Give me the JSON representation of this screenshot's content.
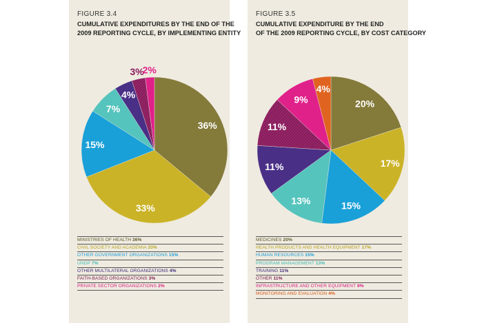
{
  "chart_data": [
    {
      "type": "pie",
      "figure_label": "FIGURE 3.4",
      "title_lines": [
        "CUMULATIVE EXPENDITURES BY THE END OF THE",
        "2009 REPORTING CYCLE, BY IMPLEMENTING ENTITY"
      ],
      "slices": [
        {
          "name": "MINISTRIES OF HEALTH",
          "value": 36,
          "label": "36%",
          "color": "#847a3a",
          "label_color": "#ffffff"
        },
        {
          "name": "CIVIL SOCIETY AND ACADEMIA",
          "value": 33,
          "label": "33%",
          "color": "#cbb327",
          "label_color": "#ffffff"
        },
        {
          "name": "OTHER GOVERNMENT ORGANIZATIONS",
          "value": 15,
          "label": "15%",
          "color": "#1aa0d8",
          "label_color": "#ffffff"
        },
        {
          "name": "UNDP",
          "value": 7,
          "label": "7%",
          "color": "#55c4bd",
          "label_color": "#ffffff"
        },
        {
          "name": "OTHER MULTILATERAL ORGANIZATIONS",
          "value": 4,
          "label": "4%",
          "color": "#4a2f87",
          "label_color": "#ffffff"
        },
        {
          "name": "FAITH-BASED ORGANIZATIONS",
          "value": 3,
          "label": "3%",
          "color": "#8a1a5c",
          "label_color": "#8a1a5c"
        },
        {
          "name": "PRIVATE SECTOR ORGANIZATIONS",
          "value": 2,
          "label": "2%",
          "color": "#e0218a",
          "label_color": "#e0218a"
        }
      ],
      "legend": [
        {
          "name": "MINISTRIES OF HEALTH",
          "pct": "36%",
          "color": "#5f5a2c"
        },
        {
          "name": "CIVIL SOCIETY AND ACADEMIA",
          "pct": "33%",
          "color": "#b8a21f"
        },
        {
          "name": "OTHER GOVERNMENT ORGANIZATIONS",
          "pct": "15%",
          "color": "#1a9ad4"
        },
        {
          "name": "UNDP",
          "pct": "7%",
          "color": "#3fb8b0"
        },
        {
          "name": "OTHER MULTILATERAL ORGANIZATIONS",
          "pct": "4%",
          "color": "#3e2a7a"
        },
        {
          "name": "FAITH-BASED ORGANIZATIONS",
          "pct": "3%",
          "color": "#7a1850"
        },
        {
          "name": "PRIVATE SECTOR ORGANIZATIONS",
          "pct": "2%",
          "color": "#d81e82"
        }
      ],
      "hatched_slices": [
        "FAITH-BASED ORGANIZATIONS"
      ]
    },
    {
      "type": "pie",
      "figure_label": "FIGURE 3.5",
      "title_lines": [
        "CUMULATIVE EXPENDITURE BY THE END",
        "OF THE 2009 REPORTING CYCLE, BY COST CATEGORY"
      ],
      "slices": [
        {
          "name": "MEDICINES",
          "value": 20,
          "label": "20%",
          "color": "#847a3a",
          "label_color": "#ffffff"
        },
        {
          "name": "HEALTH PRODUCTS AND HEALTH EQUIPMENT",
          "value": 17,
          "label": "17%",
          "color": "#cbb327",
          "label_color": "#ffffff"
        },
        {
          "name": "HUMAN RESOURCES",
          "value": 15,
          "label": "15%",
          "color": "#1aa0d8",
          "label_color": "#ffffff"
        },
        {
          "name": "PROGRAM MANAGEMENT",
          "value": 13,
          "label": "13%",
          "color": "#55c4bd",
          "label_color": "#ffffff"
        },
        {
          "name": "TRAINING",
          "value": 11,
          "label": "11%",
          "color": "#4a2f87",
          "label_color": "#ffffff"
        },
        {
          "name": "OTHER",
          "value": 11,
          "label": "11%",
          "color": "#8a1a5c",
          "label_color": "#ffffff"
        },
        {
          "name": "INFRASTRUCTURE AND OTHER EQUIPMENT",
          "value": 9,
          "label": "9%",
          "color": "#e0218a",
          "label_color": "#ffffff"
        },
        {
          "name": "MONITORING AND EVALUATION",
          "value": 4,
          "label": "4%",
          "color": "#e06420",
          "label_color": "#ffffff"
        }
      ],
      "legend": [
        {
          "name": "MEDICINES",
          "pct": "20%",
          "color": "#5f5a2c"
        },
        {
          "name": "HEALTH PRODUCTS AND HEALTH EQUIPMENT",
          "pct": "17%",
          "color": "#b8a21f"
        },
        {
          "name": "HUMAN RESOURCES",
          "pct": "15%",
          "color": "#1a9ad4"
        },
        {
          "name": "PROGRAM MANAGEMENT",
          "pct": "13%",
          "color": "#3fb8b0"
        },
        {
          "name": "TRAINING",
          "pct": "11%",
          "color": "#3e2a7a"
        },
        {
          "name": "OTHER",
          "pct": "11%",
          "color": "#7a1850"
        },
        {
          "name": "INFRASTRUCTURE AND OTHER EQUIPMENT",
          "pct": "9%",
          "color": "#d81e82"
        },
        {
          "name": "MONITORING AND EVALUATION",
          "pct": "4%",
          "color": "#d85a1a"
        }
      ],
      "hatched_slices": [
        "OTHER"
      ]
    }
  ]
}
